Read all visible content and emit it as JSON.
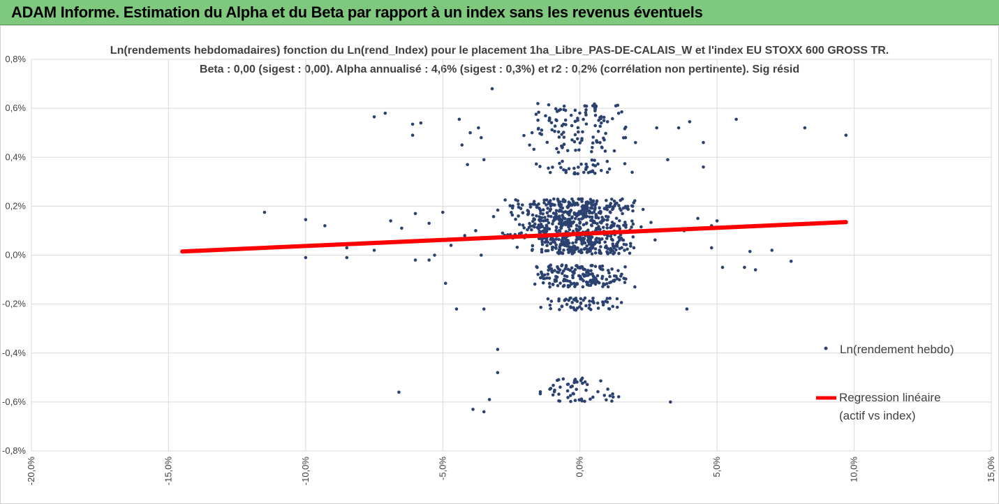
{
  "banner": {
    "title": "ADAM Informe. Estimation du Alpha et du Beta par rapport à un index sans les revenus éventuels",
    "color": "#7ec97e"
  },
  "chart_data": {
    "type": "scatter",
    "title": "Ln(rendements hebdomadaires) fonction du Ln(rend_Index)  pour le placement 1ha_Libre_PAS-DE-CALAIS_W  et l'index EU STOXX 600 GROSS TR.",
    "subtitle": "Beta : 0,00 (sigest : 0,00). Alpha annualisé : 4,6% (sigest : 0,3%) et r2 : 0,2% (corrélation non pertinente). Sig résid",
    "xlim": [
      -20,
      15
    ],
    "ylim": [
      -0.8,
      0.8
    ],
    "x_ticks": [
      "-20,0%",
      "-15,0%",
      "-10,0%",
      "-5,0%",
      "0,0%",
      "5,0%",
      "10,0%",
      "15,0%"
    ],
    "y_ticks": [
      "0,8%",
      "0,6%",
      "0,4%",
      "0,2%",
      "0,0%",
      "-0,2%",
      "-0,4%",
      "-0,6%",
      "-0,8%"
    ],
    "grid": true,
    "legend_position": "right",
    "series": [
      {
        "name": "Ln(rendement hebdo)",
        "kind": "points",
        "color": "#2b4170",
        "outliers": [
          [
            -14.5,
            0.015
          ],
          [
            -14.0,
            0.02
          ],
          [
            -11.5,
            0.175
          ],
          [
            -10.0,
            0.145
          ],
          [
            -10.0,
            -0.01
          ],
          [
            -9.3,
            0.12
          ],
          [
            -8.5,
            0.03
          ],
          [
            -8.5,
            -0.01
          ],
          [
            -7.5,
            0.565
          ],
          [
            -7.1,
            0.58
          ],
          [
            -7.5,
            0.02
          ],
          [
            -6.9,
            0.14
          ],
          [
            -6.1,
            0.535
          ],
          [
            -6.1,
            0.49
          ],
          [
            -5.8,
            0.54
          ],
          [
            -6.5,
            0.11
          ],
          [
            -6.0,
            0.17
          ],
          [
            -6.0,
            -0.02
          ],
          [
            -5.5,
            0.13
          ],
          [
            -5.3,
            0.0
          ],
          [
            -5.0,
            0.175
          ],
          [
            -4.9,
            -0.115
          ],
          [
            -4.4,
            0.555
          ],
          [
            -4.3,
            0.45
          ],
          [
            -4.1,
            0.37
          ],
          [
            -4.0,
            0.5
          ],
          [
            -3.7,
            0.52
          ],
          [
            -3.6,
            0.48
          ],
          [
            -4.5,
            -0.22
          ],
          [
            -3.5,
            -0.22
          ],
          [
            -6.6,
            -0.56
          ],
          [
            -3.2,
            0.68
          ],
          [
            -3.5,
            0.39
          ],
          [
            -3.0,
            -0.385
          ],
          [
            -3.9,
            -0.63
          ],
          [
            -3.5,
            -0.64
          ],
          [
            -3.3,
            -0.59
          ],
          [
            -3.0,
            -0.48
          ],
          [
            2.8,
            0.52
          ],
          [
            3.2,
            0.39
          ],
          [
            3.6,
            0.52
          ],
          [
            4.0,
            0.545
          ],
          [
            4.5,
            0.46
          ],
          [
            4.5,
            0.36
          ],
          [
            3.9,
            -0.22
          ],
          [
            3.3,
            -0.6
          ],
          [
            4.8,
            0.03
          ],
          [
            5.2,
            -0.05
          ],
          [
            5.7,
            0.555
          ],
          [
            6.0,
            -0.05
          ],
          [
            6.2,
            0.015
          ],
          [
            6.4,
            -0.06
          ],
          [
            7.0,
            0.02
          ],
          [
            7.7,
            -0.025
          ],
          [
            8.2,
            0.52
          ],
          [
            9.7,
            0.49
          ],
          [
            5.0,
            0.14
          ],
          [
            4.8,
            0.12
          ],
          [
            4.3,
            0.15
          ],
          [
            3.8,
            0.1
          ],
          [
            -5.5,
            -0.02
          ],
          [
            -4.7,
            0.04
          ],
          [
            -4.2,
            0.08
          ],
          [
            -3.8,
            0.1
          ],
          [
            -3.6,
            0.0
          ]
        ],
        "clusters": [
          {
            "y": 0.145,
            "x_from": -3.5,
            "x_to": 3.0,
            "spread": 0.085,
            "count": 520
          },
          {
            "y": 0.03,
            "x_from": -2.8,
            "x_to": 2.6,
            "spread": 0.025,
            "count": 150
          },
          {
            "y": -0.085,
            "x_from": -2.5,
            "x_to": 2.4,
            "spread": 0.045,
            "count": 170
          },
          {
            "y": -0.2,
            "x_from": -2.0,
            "x_to": 2.2,
            "spread": 0.025,
            "count": 60
          },
          {
            "y": 0.52,
            "x_from": -2.5,
            "x_to": 2.5,
            "spread": 0.1,
            "count": 120
          },
          {
            "y": 0.36,
            "x_from": -2.3,
            "x_to": 2.3,
            "spread": 0.03,
            "count": 40
          },
          {
            "y": -0.55,
            "x_from": -2.2,
            "x_to": 2.3,
            "spread": 0.05,
            "count": 55
          }
        ]
      },
      {
        "name": "Regression linéaire (actif vs index)",
        "name_lines": [
          "Regression linéaire",
          "(actif vs index)"
        ],
        "kind": "line",
        "color": "#ff0000",
        "points": [
          [
            -14.5,
            0.015
          ],
          [
            9.7,
            0.135
          ]
        ]
      }
    ]
  },
  "colors": {
    "corner_accent": "#f0b400",
    "gridline": "#d9d9d9",
    "text": "#404040"
  }
}
